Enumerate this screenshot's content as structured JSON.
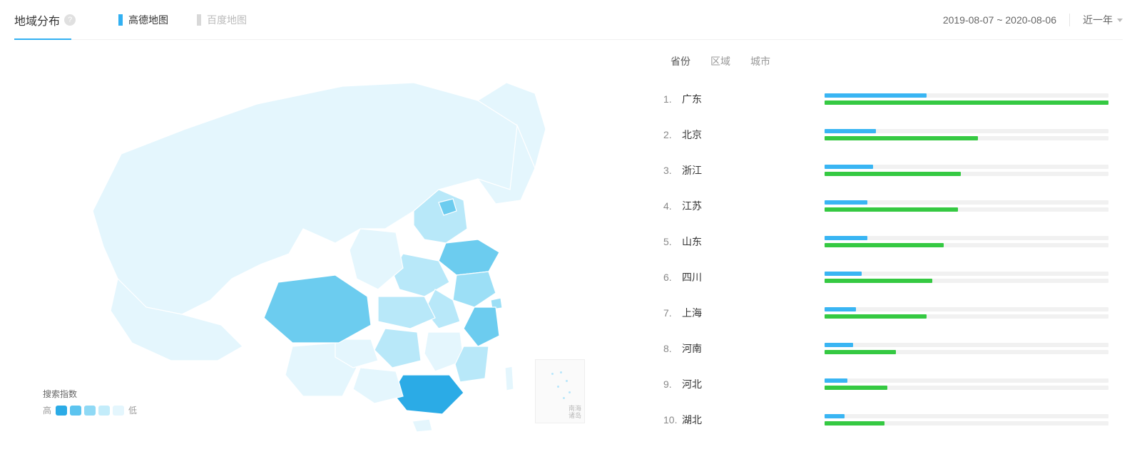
{
  "header": {
    "title": "地域分布",
    "tabs": [
      {
        "label": "高德地图",
        "active": true
      },
      {
        "label": "百度地图",
        "active": false
      }
    ],
    "date_range": "2019-08-07 ~ 2020-08-06",
    "period_label": "近一年"
  },
  "colors": {
    "accent_blue": "#32b0f2",
    "bar_blue": "#39b5f3",
    "bar_green": "#35c942",
    "track": "#f1f1f1",
    "text_muted": "#bbbbbb"
  },
  "map": {
    "legend_title": "搜索指数",
    "legend_high": "高",
    "legend_low": "低",
    "legend_colors": [
      "#2babe6",
      "#5cc4ef",
      "#8fd9f5",
      "#c3ecfa",
      "#e4f6fd"
    ],
    "inset_label_line1": "南海",
    "inset_label_line2": "诸岛",
    "province_shades": {
      "guangdong": "#2babe6",
      "sichuan": "#6cccef",
      "shandong": "#6cccef",
      "zhejiang": "#6cccef",
      "beijing": "#6cccef",
      "jiangsu": "#9cdff6",
      "henan": "#b8e8f9",
      "hubei": "#b8e8f9",
      "hunan": "#b8e8f9",
      "anhui": "#b8e8f9",
      "fujian": "#b8e8f9",
      "hebei": "#b8e8f9",
      "shanghai": "#9cdff6",
      "default": "#e4f6fd"
    }
  },
  "subtabs": [
    {
      "label": "省份",
      "active": true
    },
    {
      "label": "区域",
      "active": false
    },
    {
      "label": "城市",
      "active": false
    }
  ],
  "ranking": [
    {
      "rank": "1.",
      "name": "广东",
      "blue_pct": 36,
      "green_pct": 100
    },
    {
      "rank": "2.",
      "name": "北京",
      "blue_pct": 18,
      "green_pct": 54
    },
    {
      "rank": "3.",
      "name": "浙江",
      "blue_pct": 17,
      "green_pct": 48
    },
    {
      "rank": "4.",
      "name": "江苏",
      "blue_pct": 15,
      "green_pct": 47
    },
    {
      "rank": "5.",
      "name": "山东",
      "blue_pct": 15,
      "green_pct": 42
    },
    {
      "rank": "6.",
      "name": "四川",
      "blue_pct": 13,
      "green_pct": 38
    },
    {
      "rank": "7.",
      "name": "上海",
      "blue_pct": 11,
      "green_pct": 36
    },
    {
      "rank": "8.",
      "name": "河南",
      "blue_pct": 10,
      "green_pct": 25
    },
    {
      "rank": "9.",
      "name": "河北",
      "blue_pct": 8,
      "green_pct": 22
    },
    {
      "rank": "10.",
      "name": "湖北",
      "blue_pct": 7,
      "green_pct": 21
    }
  ]
}
